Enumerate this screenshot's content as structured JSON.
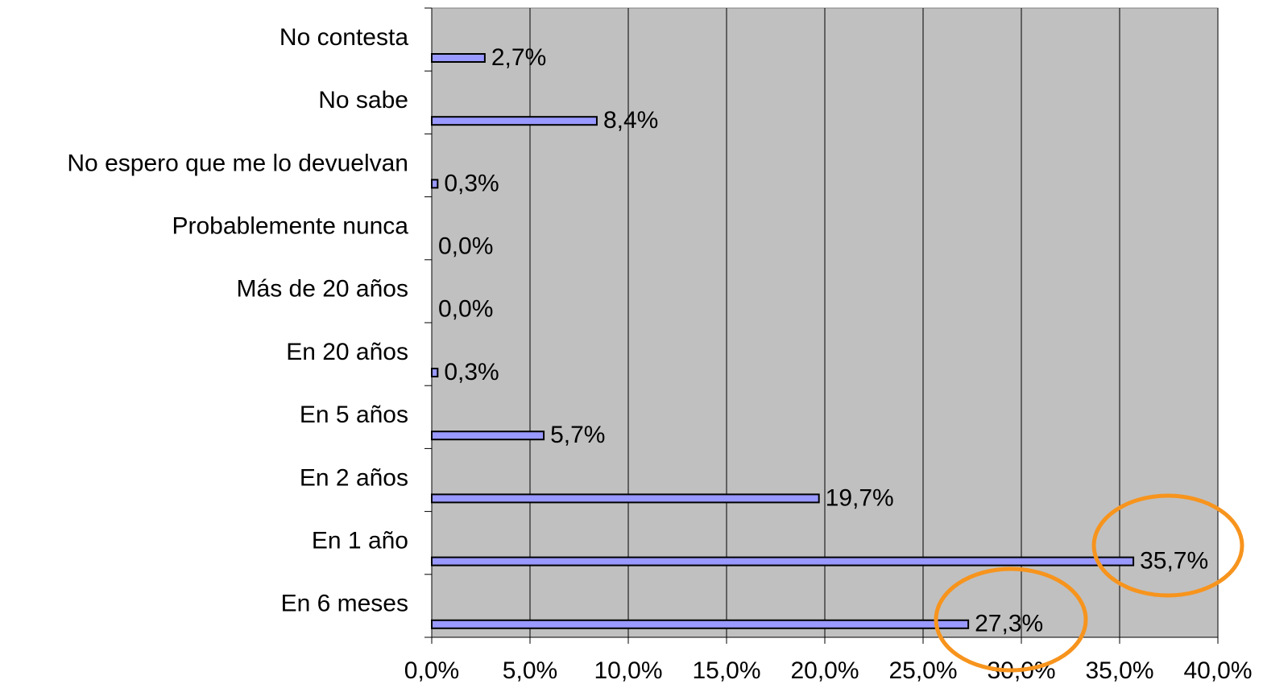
{
  "chart_data": {
    "type": "bar",
    "orientation": "horizontal",
    "categories": [
      "No contesta",
      "No sabe",
      "No espero que me lo devuelvan",
      "Probablemente nunca",
      "Más de 20 años",
      "En 20 años",
      "En 5 años",
      "En 2 años",
      "En 1 año",
      "En 6 meses"
    ],
    "values": [
      2.7,
      8.4,
      0.3,
      0.0,
      0.0,
      0.3,
      5.7,
      19.7,
      35.7,
      27.3
    ],
    "value_labels": [
      "2,7%",
      "8,4%",
      "0,3%",
      "0,0%",
      "0,0%",
      "0,3%",
      "5,7%",
      "19,7%",
      "35,7%",
      "27,3%"
    ],
    "color": "#9999ff",
    "xlim": [
      0,
      40
    ],
    "xticks": [
      {
        "value": 0,
        "label": "0,0%"
      },
      {
        "value": 5,
        "label": "5,0%"
      },
      {
        "value": 10,
        "label": "10,0%"
      },
      {
        "value": 15,
        "label": "15,0%"
      },
      {
        "value": 20,
        "label": "20,0%"
      },
      {
        "value": 25,
        "label": "25,0%"
      },
      {
        "value": 30,
        "label": "30,0%"
      },
      {
        "value": 35,
        "label": "35,0%"
      },
      {
        "value": 40,
        "label": "40,0%"
      }
    ],
    "grid": true
  }
}
